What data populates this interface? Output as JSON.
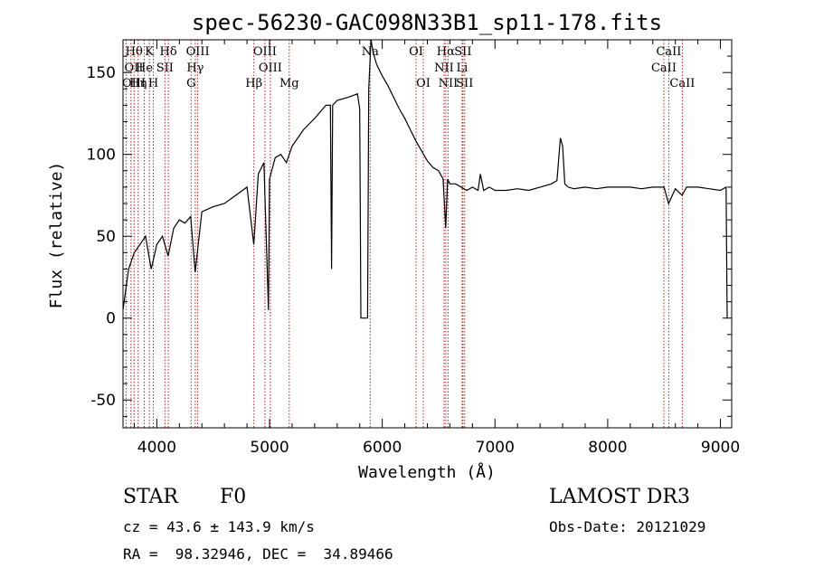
{
  "chart_data": {
    "type": "line",
    "title": "spec-56230-GAC098N33B1_sp11-178.fits",
    "xlabel": "Wavelength (Å)",
    "ylabel": "Flux (relative)",
    "xlim": [
      3700,
      9100
    ],
    "ylim": [
      -67,
      170
    ],
    "xticks": [
      "4000",
      "5000",
      "6000",
      "7000",
      "8000",
      "9000"
    ],
    "yticks": [
      "-50",
      "0",
      "50",
      "100",
      "150"
    ],
    "xtick_values": [
      4000,
      5000,
      6000,
      7000,
      8000,
      9000
    ],
    "ytick_values": [
      -50,
      0,
      50,
      100,
      150
    ],
    "series": [
      {
        "name": "spectrum",
        "x": [
          3700,
          3750,
          3800,
          3850,
          3900,
          3950,
          4000,
          4050,
          4100,
          4150,
          4200,
          4250,
          4300,
          4340,
          4400,
          4500,
          4600,
          4700,
          4800,
          4860,
          4900,
          4950,
          4990,
          5000,
          5050,
          5100,
          5150,
          5200,
          5250,
          5300,
          5400,
          5500,
          5540,
          5550,
          5560,
          5600,
          5700,
          5780,
          5800,
          5810,
          5870,
          5880,
          5900,
          5920,
          5950,
          6000,
          6050,
          6100,
          6150,
          6200,
          6250,
          6300,
          6350,
          6400,
          6450,
          6500,
          6540,
          6563,
          6580,
          6600,
          6650,
          6700,
          6750,
          6800,
          6850,
          6870,
          6900,
          6950,
          7000,
          7100,
          7200,
          7300,
          7400,
          7500,
          7550,
          7580,
          7600,
          7620,
          7650,
          7700,
          7800,
          7900,
          8000,
          8100,
          8200,
          8300,
          8400,
          8500,
          8540,
          8600,
          8660,
          8700,
          8800,
          8900,
          9000,
          9050,
          9060
        ],
        "values": [
          5,
          30,
          40,
          45,
          50,
          30,
          45,
          50,
          38,
          55,
          60,
          58,
          62,
          28,
          65,
          68,
          70,
          75,
          80,
          45,
          88,
          95,
          5,
          85,
          98,
          100,
          95,
          105,
          110,
          115,
          122,
          130,
          130,
          30,
          130,
          133,
          135,
          137,
          128,
          0,
          0,
          140,
          170,
          162,
          155,
          148,
          142,
          135,
          128,
          122,
          115,
          108,
          102,
          96,
          92,
          90,
          85,
          55,
          85,
          82,
          82,
          80,
          78,
          80,
          78,
          88,
          78,
          80,
          78,
          78,
          79,
          78,
          80,
          82,
          84,
          110,
          105,
          82,
          80,
          79,
          80,
          79,
          80,
          80,
          80,
          79,
          80,
          80,
          70,
          79,
          75,
          80,
          80,
          79,
          78,
          80,
          0
        ]
      }
    ],
    "lines": [
      {
        "name": "Hθ",
        "wl": 3798,
        "row": 1
      },
      {
        "name": "K",
        "wl": 3934,
        "row": 1
      },
      {
        "name": "Hδ",
        "wl": 4102,
        "row": 1
      },
      {
        "name": "OIII",
        "wl": 4363,
        "row": 1
      },
      {
        "name": "OIII",
        "wl": 4959,
        "row": 1
      },
      {
        "name": "OI",
        "wl": 6300,
        "row": 1
      },
      {
        "name": "Hα",
        "wl": 6563,
        "row": 1
      },
      {
        "name": "SII",
        "wl": 6716,
        "row": 1
      },
      {
        "name": "CaII",
        "wl": 8542,
        "row": 1
      },
      {
        "name": "OII",
        "wl": 3727,
        "row": 2
      },
      {
        "name": "He",
        "wl": 3889,
        "row": 2
      },
      {
        "name": "SII",
        "wl": 4072,
        "row": 2
      },
      {
        "name": "Hγ",
        "wl": 4341,
        "row": 2
      },
      {
        "name": "OIII",
        "wl": 5007,
        "row": 2
      },
      {
        "name": "NII",
        "wl": 6548,
        "row": 2
      },
      {
        "name": "Li",
        "wl": 6708,
        "row": 2
      },
      {
        "name": "CaII",
        "wl": 8498,
        "row": 2
      },
      {
        "name": "OIII",
        "wl": 3727,
        "row": 3
      },
      {
        "name": "Hη",
        "wl": 3835,
        "row": 3
      },
      {
        "name": "H",
        "wl": 3969,
        "row": 3
      },
      {
        "name": "G",
        "wl": 4304,
        "row": 3
      },
      {
        "name": "Hβ",
        "wl": 4861,
        "row": 3
      },
      {
        "name": "Mg",
        "wl": 5175,
        "row": 3
      },
      {
        "name": "OI",
        "wl": 6364,
        "row": 3
      },
      {
        "name": "NII",
        "wl": 6584,
        "row": 3
      },
      {
        "name": "SII",
        "wl": 6731,
        "row": 3
      },
      {
        "name": "CaII",
        "wl": 8662,
        "row": 3
      },
      {
        "name": "Na",
        "wl": 5893,
        "row": 1
      }
    ],
    "extra_line_markers": [
      3771,
      3889,
      3934,
      4102,
      4304,
      4341,
      4861,
      4959,
      5007,
      5175,
      5893,
      6300,
      6364,
      6548,
      6563,
      6584,
      6708,
      6716,
      6731,
      8498,
      8542,
      8662
    ]
  },
  "info": {
    "object_class": "STAR",
    "subclass": "F0",
    "survey": "LAMOST DR3",
    "redshift_line": "cz = 43.6 ± 143.9 km/s",
    "obs_date_line": "Obs-Date: 20121029",
    "coords_line": "RA =  98.32946, DEC =  34.89466"
  }
}
